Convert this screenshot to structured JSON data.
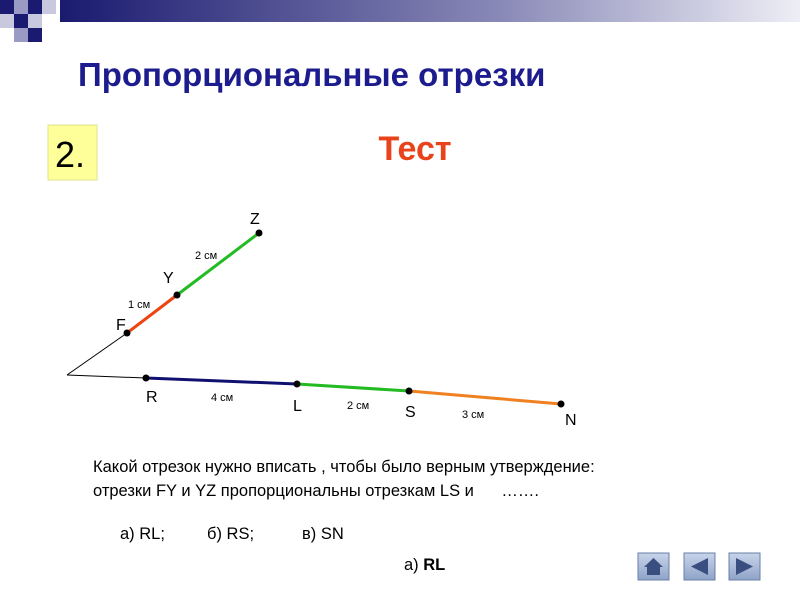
{
  "header": {
    "title": "Пропорциональные отрезки",
    "badge": "2.",
    "subtitle": "Тест"
  },
  "diagram": {
    "points": [
      "Z",
      "Y",
      "F",
      "R",
      "L",
      "S",
      "N"
    ],
    "segments": [
      {
        "name": "FY",
        "label": "1 см"
      },
      {
        "name": "YZ",
        "label": "2 см"
      },
      {
        "name": "RL",
        "label": "4 см"
      },
      {
        "name": "LS",
        "label": "2 см"
      },
      {
        "name": "SN",
        "label": "3 см"
      }
    ]
  },
  "question": {
    "lines": [
      "Какой отрезок нужно вписать , чтобы было верным утверждение:",
      "отрезки FY и YZ пропорциональны отрезкам LS и      ……."
    ],
    "options": [
      "а) RL;",
      "б) RS;",
      "в) SN"
    ]
  },
  "answer": {
    "prefix": "а)",
    "value": "RL"
  }
}
